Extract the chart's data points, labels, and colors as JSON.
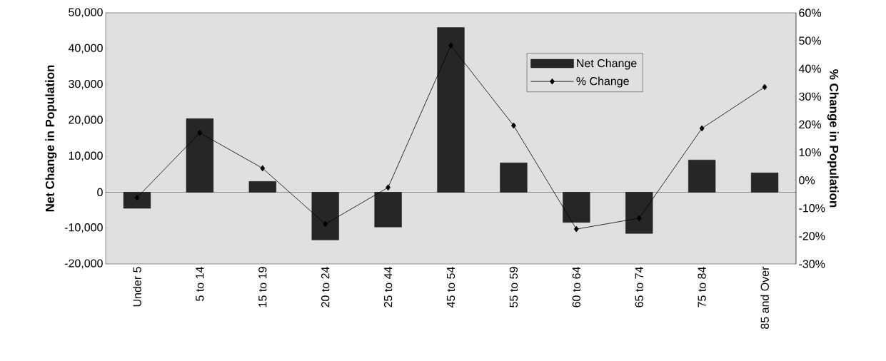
{
  "chart_data": {
    "type": "bar",
    "xlabel": null,
    "ylabel": "Net Change in Population",
    "y2label": "% Change in Population",
    "categories": [
      "Under 5",
      "5 to 14",
      "15 to 19",
      "20 to 24",
      "25 to 44",
      "45 to 54",
      "55 to 59",
      "60 to 64",
      "65 to 74",
      "75 to 84",
      "85 and Over"
    ],
    "series": [
      {
        "name": "Net Change",
        "color": "#262626",
        "values": [
          -4500,
          20500,
          3000,
          -13300,
          -9700,
          45900,
          8200,
          -8400,
          -11500,
          9000,
          5400
        ]
      },
      {
        "name": "% Change",
        "type": "line",
        "axis": "y2",
        "color": "#000000",
        "values": [
          -6.2,
          17,
          4.3,
          -15.7,
          -2.6,
          48.3,
          19.6,
          -17.5,
          -13.6,
          18.6,
          33.4
        ]
      }
    ],
    "ylim": [
      -20000,
      50000
    ],
    "yticks": [
      {
        "value": -20000,
        "label": "-20,000"
      },
      {
        "value": -10000,
        "label": "-10,000"
      },
      0,
      {
        "value": 10000,
        "label": "10,000"
      },
      {
        "value": 20000,
        "label": "20,000"
      },
      {
        "value": 30000,
        "label": "30,000"
      },
      {
        "value": 40000,
        "label": "40,000"
      },
      {
        "value": 50000,
        "label": "50,000"
      }
    ],
    "y2lim": [
      -30,
      60
    ],
    "y2ticks": [
      {
        "value": -30,
        "label": "-30%"
      },
      {
        "value": -20,
        "label": "-20%"
      },
      {
        "value": -10,
        "label": "-10%"
      },
      {
        "value": 0,
        "label": "0%"
      },
      {
        "value": 10,
        "label": "10%"
      },
      {
        "value": 20,
        "label": "20%"
      },
      {
        "value": 30,
        "label": "30%"
      },
      {
        "value": 40,
        "label": "40%"
      },
      {
        "value": 50,
        "label": "50%"
      },
      {
        "value": 60,
        "label": "60%"
      }
    ],
    "legend": "top right",
    "marker": "diamond",
    "line_style": "solid"
  }
}
